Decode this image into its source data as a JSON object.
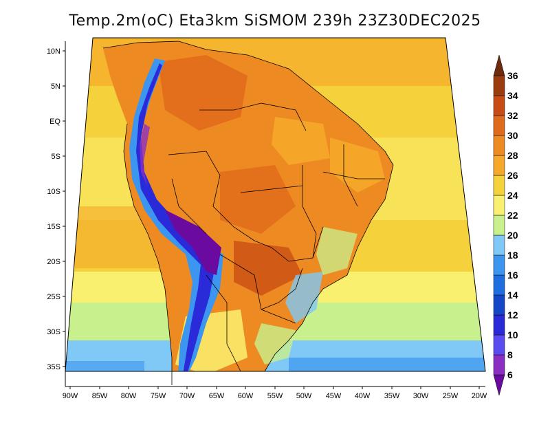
{
  "title": "Temp.2m(oC) Eta3km SiSMOM 239h 23Z30DEC2025",
  "lat_labels": [
    "10N",
    "5N",
    "EQ",
    "5S",
    "10S",
    "15S",
    "20S",
    "25S",
    "30S",
    "35S"
  ],
  "lon_labels": [
    "90W",
    "85W",
    "80W",
    "75W",
    "70W",
    "65W",
    "60W",
    "55W",
    "50W",
    "45W",
    "40W",
    "35W",
    "30W",
    "25W",
    "20W"
  ],
  "colorbar": {
    "levels": [
      "6",
      "8",
      "10",
      "12",
      "14",
      "16",
      "18",
      "20",
      "22",
      "24",
      "26",
      "28",
      "30",
      "32",
      "34",
      "36"
    ],
    "colors": [
      "#6a0a9e",
      "#8b2fc2",
      "#5a4cf0",
      "#2a2ad8",
      "#1446c8",
      "#1e6ee0",
      "#3c96f0",
      "#80c8f5",
      "#c8f08c",
      "#faf070",
      "#f5d23c",
      "#f5a82a",
      "#ee8a22",
      "#e06a1c",
      "#c84a14",
      "#9a3c10",
      "#6e2a0c"
    ]
  }
}
